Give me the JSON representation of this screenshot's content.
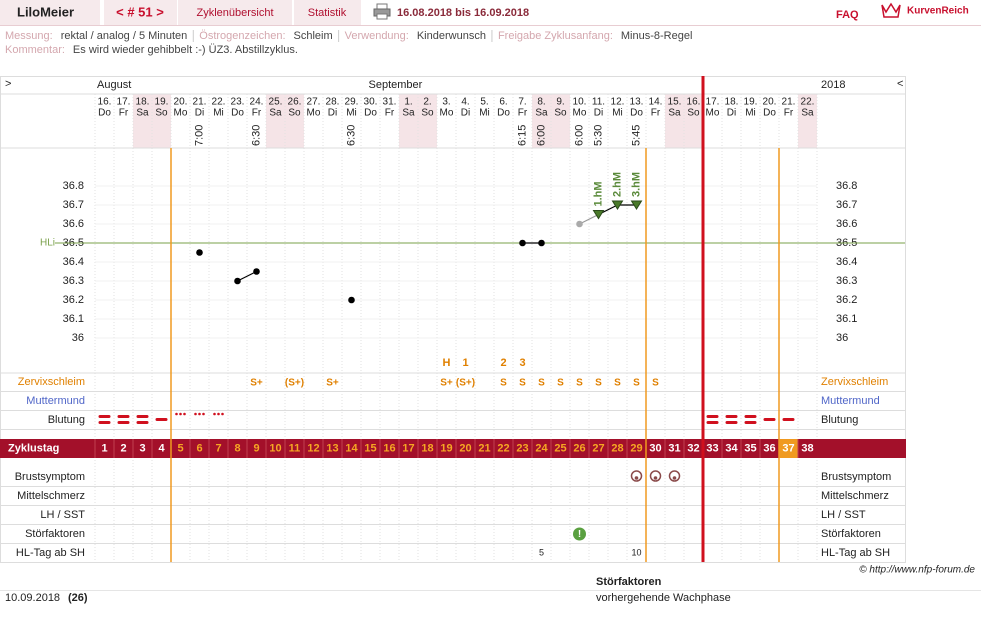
{
  "header": {
    "user": "LiloMeier",
    "cycle_nav": "< # 51 >",
    "tabs": [
      "Zyklenübersicht",
      "Statistik"
    ],
    "date_range": "16.08.2018 bis 16.09.2018",
    "faq": "FAQ",
    "logo": "KurvenReich"
  },
  "info": {
    "items": [
      {
        "label": "Messung:",
        "value": "rektal / analog / 5 Minuten"
      },
      {
        "label": "Östrogenzeichen:",
        "value": "Schleim"
      },
      {
        "label": "Verwendung:",
        "value": "Kinderwunsch"
      },
      {
        "label": "Freigabe Zyklusanfang:",
        "value": "Minus-8-Regel"
      }
    ],
    "comment_label": "Kommentar:",
    "comment": "Es wird wieder gehibbelt :-) ÜZ3. Abstillzyklus."
  },
  "chart_data": {
    "type": "line",
    "nav_left": ">",
    "nav_right": "<",
    "months": [
      "August",
      "September"
    ],
    "year": "2018",
    "dates": [
      "16.",
      "17.",
      "18.",
      "19.",
      "20.",
      "21.",
      "22.",
      "23.",
      "24.",
      "25.",
      "26.",
      "27.",
      "28.",
      "29.",
      "30.",
      "31.",
      "1.",
      "2.",
      "3.",
      "4.",
      "5.",
      "6.",
      "7.",
      "8.",
      "9.",
      "10.",
      "11.",
      "12.",
      "13.",
      "14.",
      "15.",
      "16.",
      "17.",
      "18.",
      "19.",
      "20.",
      "21.",
      "22."
    ],
    "weekdays": [
      "Do",
      "Fr",
      "Sa",
      "So",
      "Mo",
      "Di",
      "Mi",
      "Do",
      "Fr",
      "Sa",
      "So",
      "Mo",
      "Di",
      "Mi",
      "Do",
      "Fr",
      "Sa",
      "So",
      "Mo",
      "Di",
      "Mi",
      "Do",
      "Fr",
      "Sa",
      "So",
      "Mo",
      "Di",
      "Mi",
      "Do",
      "Fr",
      "Sa",
      "So",
      "Mo",
      "Di",
      "Mi",
      "Do",
      "Fr",
      "Sa"
    ],
    "times": [
      null,
      null,
      null,
      null,
      null,
      "7:00",
      null,
      null,
      "6:30",
      null,
      null,
      null,
      null,
      "6:30",
      null,
      null,
      null,
      null,
      null,
      null,
      null,
      null,
      "6:15",
      "6:00",
      null,
      "6:00",
      "5:30",
      null,
      "5:45",
      null,
      null,
      null,
      null,
      null,
      null,
      null,
      null,
      null
    ],
    "ylim": [
      35.8,
      37.0
    ],
    "yticks": [
      36,
      36.1,
      36.2,
      36.3,
      36.4,
      36.5,
      36.6,
      36.7,
      36.8
    ],
    "coverline": {
      "label": "HLi",
      "value": 36.5,
      "color": "#7aa04a"
    },
    "values": [
      null,
      null,
      null,
      null,
      null,
      36.45,
      null,
      36.3,
      36.35,
      null,
      null,
      null,
      null,
      36.2,
      null,
      null,
      null,
      null,
      null,
      null,
      null,
      null,
      36.5,
      36.5,
      null,
      36.6,
      36.65,
      36.7,
      36.7,
      null,
      null,
      null,
      null,
      null,
      null,
      null,
      null,
      null
    ],
    "markers": [
      null,
      null,
      null,
      null,
      null,
      "dot",
      null,
      "dot",
      "dot",
      null,
      null,
      null,
      null,
      "dot",
      null,
      null,
      null,
      null,
      null,
      null,
      null,
      null,
      "dot",
      "dot",
      null,
      "excluded",
      "higher",
      "higher",
      "higher",
      null,
      null,
      null,
      null,
      null,
      null,
      null,
      null,
      null
    ],
    "higher_labels": [
      null,
      null,
      null,
      null,
      null,
      null,
      null,
      null,
      null,
      null,
      null,
      null,
      null,
      null,
      null,
      null,
      null,
      null,
      null,
      null,
      null,
      null,
      null,
      null,
      null,
      null,
      "1.hM",
      "2.hM",
      "3.hM",
      null,
      null,
      null,
      null,
      null,
      null,
      null,
      null,
      null
    ],
    "rows": {
      "cervix": "Zervixschleim",
      "cervix_os": "Muttermund",
      "bleeding": "Blutung",
      "cycle_day": "Zyklustag",
      "breast": "Brustsymptom",
      "mittelschmerz": "Mittelschmerz",
      "lh": "LH / SST",
      "disturbance": "Störfaktoren",
      "hl_day": "HL-Tag ab SH"
    },
    "peak_count": [
      null,
      null,
      null,
      null,
      null,
      null,
      null,
      null,
      null,
      null,
      null,
      null,
      null,
      null,
      null,
      null,
      null,
      null,
      "H",
      "1",
      null,
      "2",
      "3",
      null,
      null,
      null,
      null,
      null,
      null,
      null,
      null,
      null,
      null,
      null,
      null,
      null,
      null,
      null
    ],
    "cervix": [
      null,
      null,
      null,
      null,
      null,
      null,
      null,
      null,
      "S+",
      null,
      "(S+)",
      null,
      "S+",
      null,
      null,
      null,
      null,
      null,
      "S+",
      "(S+)",
      null,
      "S",
      "S",
      "S",
      "S",
      "S",
      "S",
      "S",
      "S",
      "S",
      null,
      null,
      null,
      null,
      null,
      null,
      null,
      null
    ],
    "bleeding": [
      3,
      3,
      3,
      2,
      1,
      1,
      1,
      null,
      null,
      null,
      null,
      null,
      null,
      null,
      null,
      null,
      null,
      null,
      null,
      null,
      null,
      null,
      null,
      null,
      null,
      null,
      null,
      null,
      null,
      null,
      null,
      null,
      3,
      3,
      3,
      2,
      2,
      null
    ],
    "cycle_days": [
      1,
      2,
      3,
      4,
      5,
      6,
      7,
      8,
      9,
      10,
      11,
      12,
      13,
      14,
      15,
      16,
      17,
      18,
      19,
      20,
      21,
      22,
      23,
      24,
      25,
      26,
      27,
      28,
      29,
      30,
      31,
      32,
      33,
      34,
      35,
      36,
      37,
      38
    ],
    "breast": [
      null,
      null,
      null,
      null,
      null,
      null,
      null,
      null,
      null,
      null,
      null,
      null,
      null,
      null,
      null,
      null,
      null,
      null,
      null,
      null,
      null,
      null,
      null,
      null,
      null,
      null,
      null,
      null,
      1,
      1,
      1,
      null,
      null,
      null,
      null,
      null,
      null,
      null
    ],
    "disturbance": [
      null,
      null,
      null,
      null,
      null,
      null,
      null,
      null,
      null,
      null,
      null,
      null,
      null,
      null,
      null,
      null,
      null,
      null,
      null,
      null,
      null,
      null,
      null,
      null,
      null,
      "!",
      null,
      null,
      null,
      null,
      null,
      null,
      null,
      null,
      null,
      null,
      null,
      null
    ],
    "hl_day": [
      null,
      null,
      null,
      null,
      null,
      null,
      null,
      null,
      null,
      null,
      null,
      null,
      null,
      null,
      null,
      null,
      null,
      null,
      null,
      null,
      null,
      null,
      null,
      5,
      null,
      null,
      null,
      null,
      10,
      null,
      null,
      null,
      null,
      null,
      null,
      null,
      null,
      null
    ],
    "fertile_start_day": 5,
    "fertile_end_day": 29,
    "cycle_end_day": 32,
    "next_fertile_start_day": 37
  },
  "footer": {
    "copyright": "© http://www.nfp-forum.de",
    "legend_title": "Störfaktoren",
    "legend_text": "vorhergehende Wachphase",
    "date": "10.09.2018",
    "count": "(26)"
  }
}
